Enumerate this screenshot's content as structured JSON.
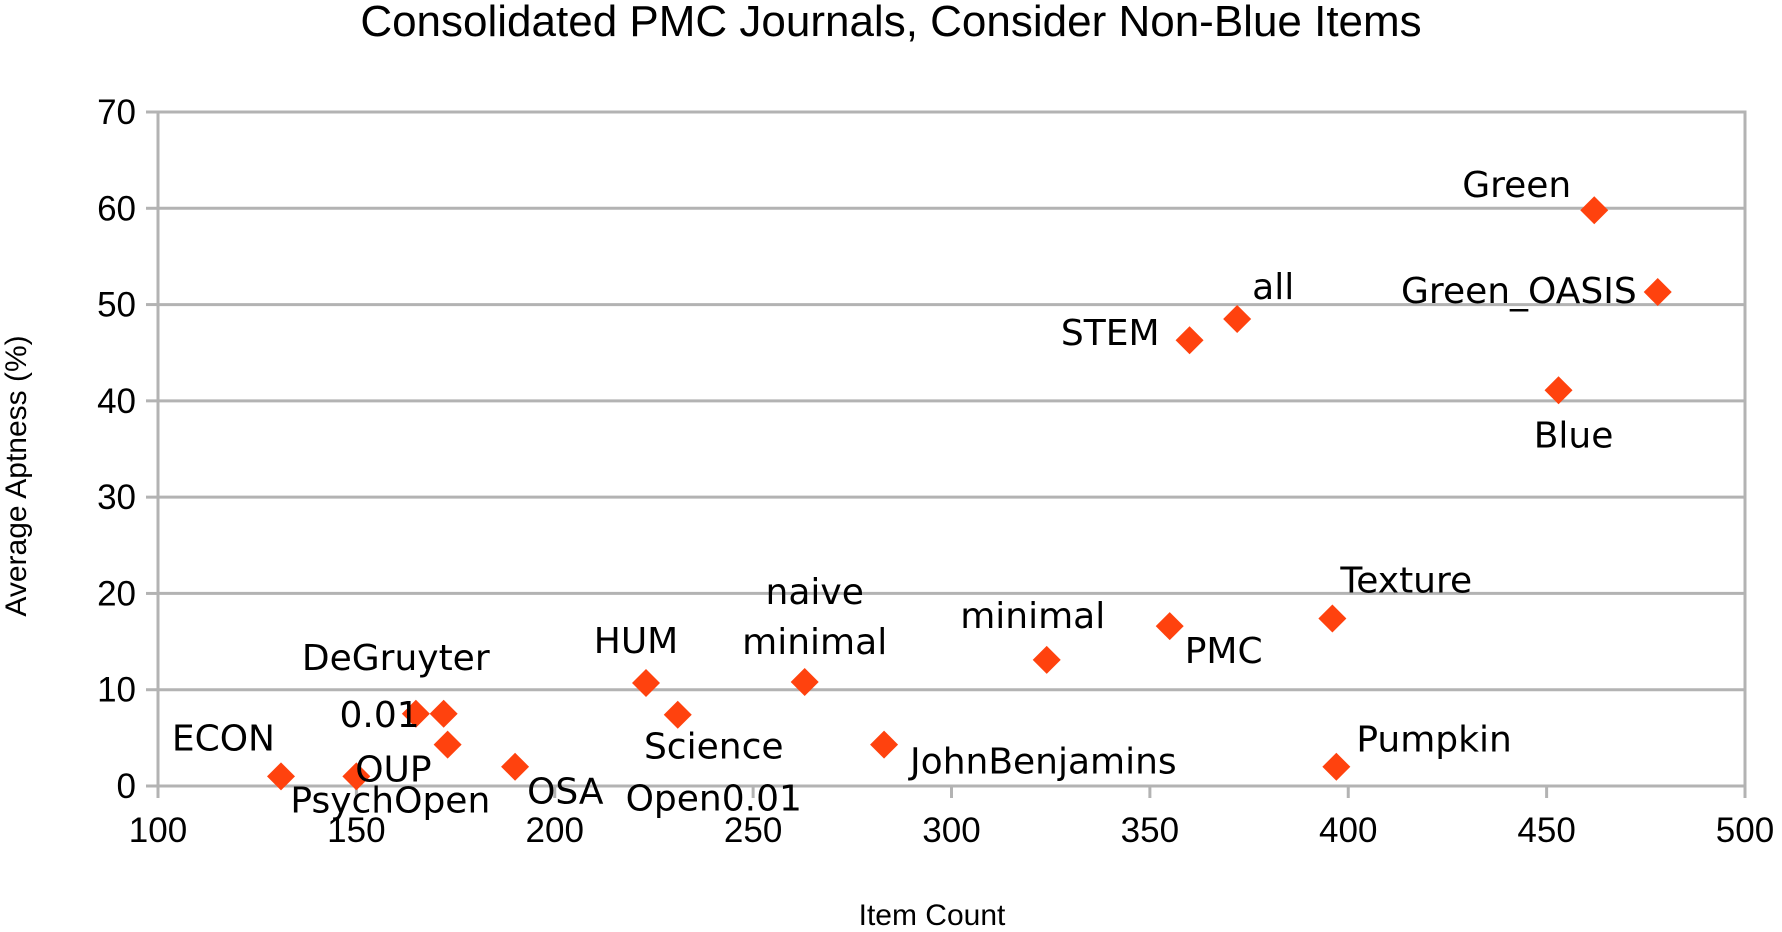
{
  "chart_data": {
    "type": "scatter",
    "title": "Consolidated PMC Journals, Consider Non-Blue Items",
    "xlabel": "Item Count",
    "ylabel": "Average Aptness (%)",
    "xlim": [
      100,
      500
    ],
    "ylim": [
      0,
      70
    ],
    "xticks": [
      100,
      150,
      200,
      250,
      300,
      350,
      400,
      450,
      500
    ],
    "yticks": [
      0,
      10,
      20,
      30,
      40,
      50,
      60,
      70
    ],
    "grid": "horizontal",
    "marker_color": "#ff420e",
    "marker": "diamond",
    "points": [
      {
        "label": "ECON",
        "x": 131,
        "y": 1
      },
      {
        "label": "PsychOpen",
        "x": 150,
        "y": 1
      },
      {
        "label": "DeGruyter",
        "x": 165,
        "y": 7.5
      },
      {
        "label": "0.01",
        "x": 172,
        "y": 7.5
      },
      {
        "label": "OUP",
        "x": 173,
        "y": 4.3
      },
      {
        "label": "OSA",
        "x": 190,
        "y": 2
      },
      {
        "label": "HUM",
        "x": 223,
        "y": 10.7
      },
      {
        "label": "Science Open0.01",
        "x": 231,
        "y": 7.4
      },
      {
        "label": "naive minimal",
        "x": 263,
        "y": 10.8
      },
      {
        "label": "JohnBenjamins",
        "x": 283,
        "y": 4.3
      },
      {
        "label": "minimal",
        "x": 324,
        "y": 13.1
      },
      {
        "label": "PMC",
        "x": 355,
        "y": 16.6
      },
      {
        "label": "STEM",
        "x": 360,
        "y": 46.3
      },
      {
        "label": "all",
        "x": 372,
        "y": 48.5
      },
      {
        "label": "Texture",
        "x": 396,
        "y": 17.4
      },
      {
        "label": "Pumpkin",
        "x": 397,
        "y": 2
      },
      {
        "label": "Blue",
        "x": 453,
        "y": 41.1
      },
      {
        "label": "Green",
        "x": 462,
        "y": 59.8
      },
      {
        "label": "Green_OASIS",
        "x": 478,
        "y": 51.3
      }
    ]
  }
}
